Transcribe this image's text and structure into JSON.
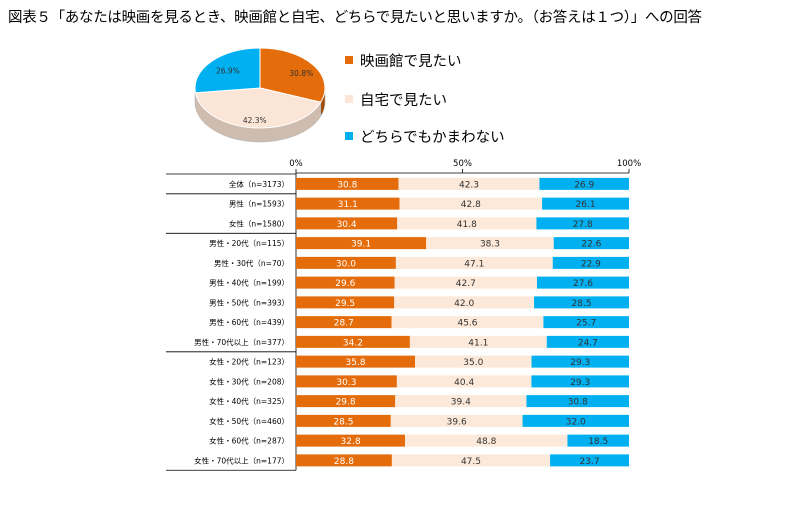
{
  "title": "図表５「あなたは映画を見るとき、映画館と自宅、どちらで見たいと思いますか。（お答えは１つ）」への回答",
  "colors": {
    "theater": "#E46C0A",
    "home": "#FDE9D9",
    "either": "#00B0F0",
    "home_slice": "#FBE5D6"
  },
  "chart_data": [
    {
      "type": "pie",
      "series": [
        {
          "name": "映画館で見たい",
          "value": 30.8,
          "label": "30.8%"
        },
        {
          "name": "自宅で見たい",
          "value": 42.3,
          "label": "42.3%"
        },
        {
          "name": "どちらでもかまわない",
          "value": 26.9,
          "label": "26.9%"
        }
      ],
      "legend": [
        "映画館で見たい",
        "自宅で見たい",
        "どちらでもかまわない"
      ],
      "legend_position": "right"
    },
    {
      "type": "bar",
      "orientation": "horizontal-stacked-100",
      "axis": {
        "ticks": [
          "0%",
          "50%",
          "100%"
        ],
        "range": [
          0,
          100
        ]
      },
      "series_names": [
        "映画館で見たい",
        "自宅で見たい",
        "どちらでもかまわない"
      ],
      "rows": [
        {
          "label": "全体（n=3173）",
          "values": [
            30.8,
            42.3,
            26.9
          ],
          "labels": [
            "30.8",
            "42.3",
            "26.9"
          ]
        },
        {
          "label": "男性（n=1593）",
          "values": [
            31.1,
            42.8,
            26.1
          ],
          "labels": [
            "31.1",
            "42.8",
            "26.1"
          ]
        },
        {
          "label": "女性（n=1580）",
          "values": [
            30.4,
            41.8,
            27.8
          ],
          "labels": [
            "30.4",
            "41.8",
            "27.8"
          ]
        },
        {
          "label": "男性・20代（n=115）",
          "values": [
            39.1,
            38.3,
            22.6
          ],
          "labels": [
            "39.1",
            "38.3",
            "22.6"
          ]
        },
        {
          "label": "男性・30代（n=70）",
          "values": [
            30.0,
            47.1,
            22.9
          ],
          "labels": [
            "30.0",
            "47.1",
            "22.9"
          ]
        },
        {
          "label": "男性・40代（n=199）",
          "values": [
            29.6,
            42.7,
            27.6
          ],
          "labels": [
            "29.6",
            "42.7",
            "27.6"
          ]
        },
        {
          "label": "男性・50代（n=393）",
          "values": [
            29.5,
            42.0,
            28.5
          ],
          "labels": [
            "29.5",
            "42.0",
            "28.5"
          ]
        },
        {
          "label": "男性・60代（n=439）",
          "values": [
            28.7,
            45.6,
            25.7
          ],
          "labels": [
            "28.7",
            "45.6",
            "25.7"
          ]
        },
        {
          "label": "男性・70代以上（n=377）",
          "values": [
            34.2,
            41.1,
            24.7
          ],
          "labels": [
            "34.2",
            "41.1",
            "24.7"
          ]
        },
        {
          "label": "女性・20代（n=123）",
          "values": [
            35.8,
            35.0,
            29.3
          ],
          "labels": [
            "35.8",
            "35.0",
            "29.3"
          ]
        },
        {
          "label": "女性・30代（n=208）",
          "values": [
            30.3,
            40.4,
            29.3
          ],
          "labels": [
            "30.3",
            "40.4",
            "29.3"
          ]
        },
        {
          "label": "女性・40代（n=325）",
          "values": [
            29.8,
            39.4,
            30.8
          ],
          "labels": [
            "29.8",
            "39.4",
            "30.8"
          ]
        },
        {
          "label": "女性・50代（n=460）",
          "values": [
            28.5,
            39.6,
            32.0
          ],
          "labels": [
            "28.5",
            "39.6",
            "32.0"
          ]
        },
        {
          "label": "女性・60代（n=287）",
          "values": [
            32.8,
            48.8,
            18.5
          ],
          "labels": [
            "32.8",
            "48.8",
            "18.5"
          ]
        },
        {
          "label": "女性・70代以上（n=177）",
          "values": [
            28.8,
            47.5,
            23.7
          ],
          "labels": [
            "28.8",
            "47.5",
            "23.7"
          ]
        }
      ],
      "group_breaks_after": [
        0,
        2,
        8
      ]
    }
  ]
}
